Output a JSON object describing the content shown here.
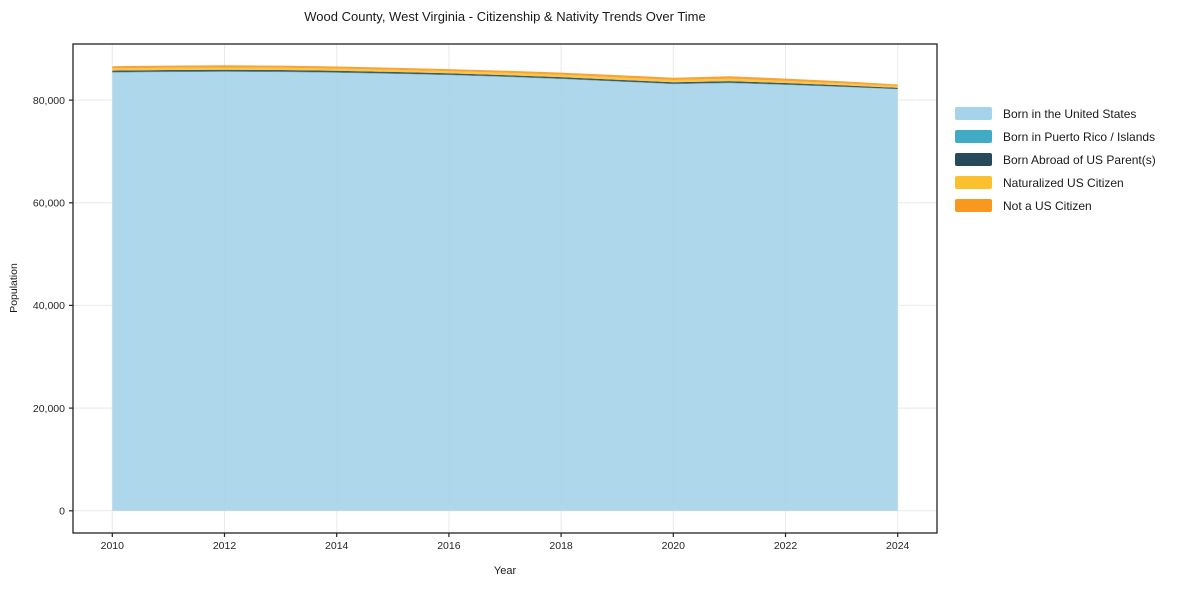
{
  "chart_data": {
    "type": "area",
    "stacked": true,
    "title": "Wood County, West Virginia - Citizenship & Nativity Trends Over Time",
    "xlabel": "Year",
    "ylabel": "Population",
    "x": [
      2010,
      2011,
      2012,
      2013,
      2014,
      2015,
      2016,
      2017,
      2018,
      2019,
      2020,
      2021,
      2022,
      2023,
      2024
    ],
    "series": [
      {
        "name": "Born in the United States",
        "color": "#a5d3e9",
        "values": [
          85350,
          85450,
          85500,
          85450,
          85300,
          85100,
          84850,
          84500,
          84100,
          83600,
          83100,
          83300,
          82950,
          82550,
          82100
        ]
      },
      {
        "name": "Born in Puerto Rico / Islands",
        "color": "#41abc5",
        "values": [
          90,
          95,
          100,
          100,
          95,
          90,
          90,
          90,
          95,
          90,
          85,
          90,
          85,
          80,
          70
        ]
      },
      {
        "name": "Born Abroad of US Parent(s)",
        "color": "#27495c",
        "values": [
          310,
          315,
          320,
          315,
          310,
          300,
          295,
          290,
          285,
          290,
          310,
          320,
          290,
          260,
          230
        ]
      },
      {
        "name": "Naturalized US Citizen",
        "color": "#fbc02d",
        "values": [
          420,
          430,
          435,
          430,
          425,
          415,
          420,
          440,
          460,
          450,
          430,
          450,
          420,
          380,
          320
        ]
      },
      {
        "name": "Not a US Citizen",
        "color": "#f8981f",
        "values": [
          430,
          425,
          430,
          425,
          415,
          405,
          395,
          405,
          420,
          435,
          445,
          480,
          435,
          385,
          315
        ]
      }
    ],
    "xticks": [
      2010,
      2012,
      2014,
      2016,
      2018,
      2020,
      2022,
      2024
    ],
    "yticks": [
      0,
      20000,
      40000,
      60000,
      80000
    ],
    "ytick_labels": [
      "0",
      "20,000",
      "40,000",
      "60,000",
      "80,000"
    ],
    "xlim": [
      2009.3,
      2024.7
    ],
    "ylim": [
      -4330,
      90930
    ],
    "grid": true,
    "legend_position": "right",
    "axis_color": "#222222",
    "grid_color": "#e9e9e9",
    "tick_label_color": "#262626",
    "fill_opacity": 0.9
  }
}
